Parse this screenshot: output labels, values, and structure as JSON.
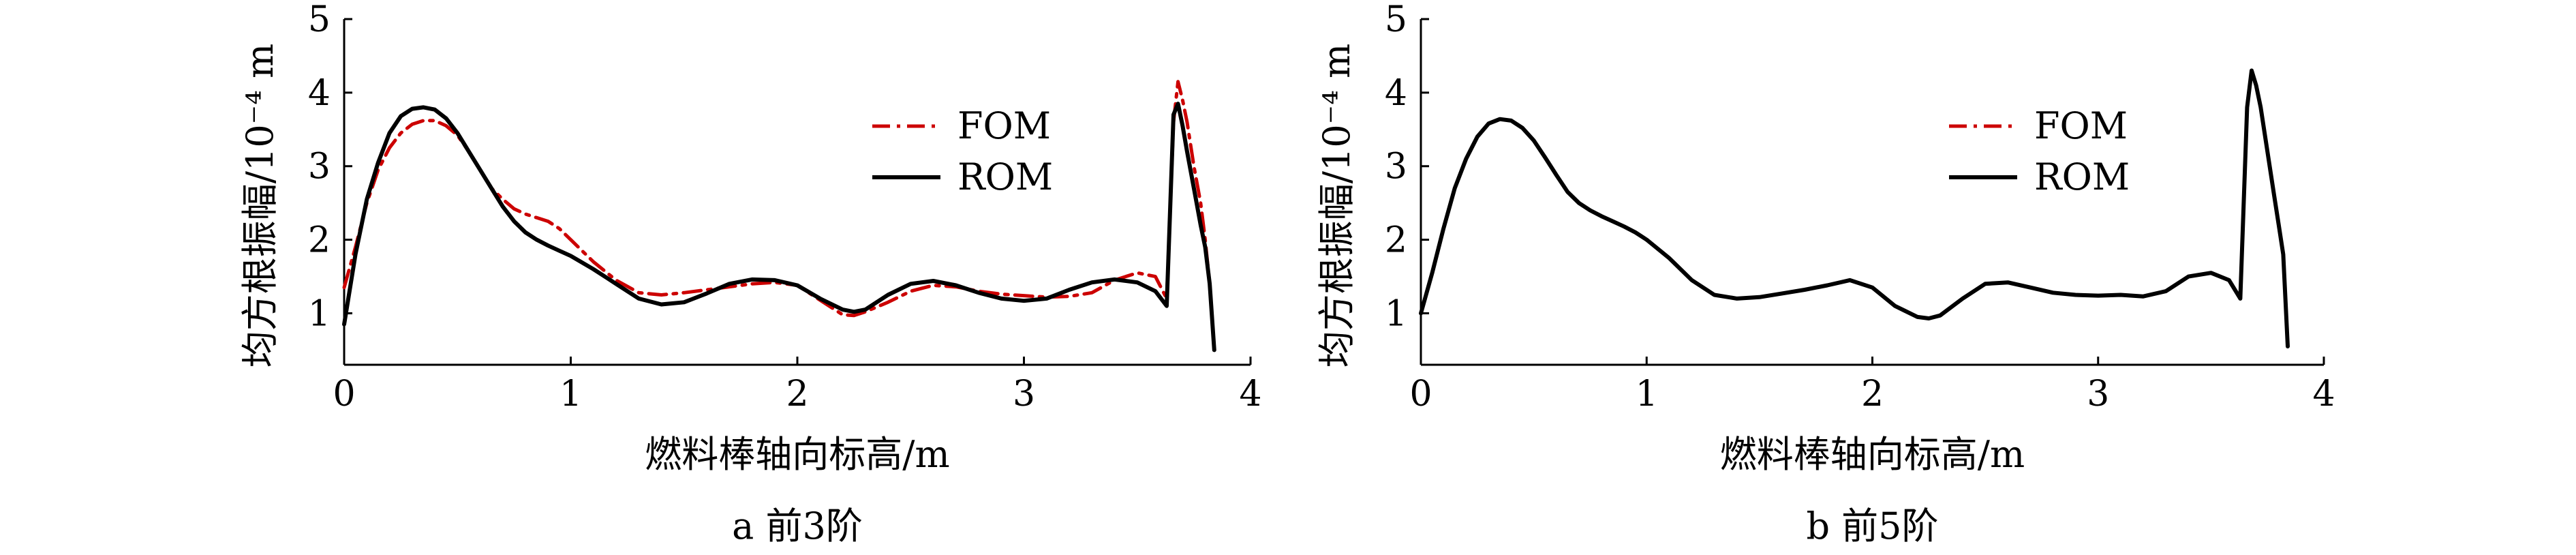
{
  "chart_data": [
    {
      "type": "line",
      "caption": "a  前3阶",
      "xlabel": "燃料棒轴向标高/m",
      "ylabel": "均方根振幅/10⁻⁴ m",
      "xlim": [
        0,
        4
      ],
      "ylim": [
        0.3,
        5
      ],
      "xticks": [
        "0",
        "1",
        "2",
        "3",
        "4"
      ],
      "yticks": [
        "1",
        "2",
        "3",
        "4",
        "5"
      ],
      "legend_position": "upper-right",
      "series": [
        {
          "name": "FOM",
          "color": "#cc0000",
          "dash": "dashdot",
          "x": [
            0,
            0.05,
            0.1,
            0.15,
            0.2,
            0.25,
            0.3,
            0.35,
            0.4,
            0.45,
            0.5,
            0.55,
            0.6,
            0.65,
            0.7,
            0.75,
            0.8,
            0.85,
            0.9,
            0.95,
            1.0,
            1.1,
            1.2,
            1.3,
            1.4,
            1.5,
            1.6,
            1.7,
            1.8,
            1.9,
            2.0,
            2.1,
            2.2,
            2.25,
            2.3,
            2.4,
            2.5,
            2.6,
            2.7,
            2.8,
            2.9,
            3.0,
            3.1,
            3.2,
            3.3,
            3.4,
            3.5,
            3.58,
            3.63,
            3.66,
            3.68,
            3.7,
            3.72,
            3.75,
            3.78,
            3.8,
            3.82,
            3.84
          ],
          "y": [
            1.35,
            1.9,
            2.5,
            2.95,
            3.25,
            3.45,
            3.57,
            3.62,
            3.62,
            3.55,
            3.42,
            3.2,
            2.95,
            2.7,
            2.55,
            2.42,
            2.35,
            2.3,
            2.25,
            2.15,
            2.0,
            1.7,
            1.45,
            1.28,
            1.25,
            1.28,
            1.32,
            1.36,
            1.4,
            1.42,
            1.38,
            1.18,
            0.98,
            0.97,
            1.02,
            1.15,
            1.3,
            1.38,
            1.36,
            1.3,
            1.26,
            1.24,
            1.22,
            1.23,
            1.28,
            1.45,
            1.55,
            1.5,
            1.2,
            3.6,
            4.15,
            3.9,
            3.6,
            3.0,
            2.5,
            2.0,
            1.4,
            0.5
          ]
        },
        {
          "name": "ROM",
          "color": "#000000",
          "dash": "solid",
          "x": [
            0,
            0.05,
            0.1,
            0.15,
            0.2,
            0.25,
            0.3,
            0.35,
            0.4,
            0.45,
            0.5,
            0.55,
            0.6,
            0.65,
            0.7,
            0.75,
            0.8,
            0.85,
            0.9,
            0.95,
            1.0,
            1.1,
            1.2,
            1.3,
            1.4,
            1.5,
            1.6,
            1.7,
            1.8,
            1.9,
            2.0,
            2.1,
            2.2,
            2.25,
            2.3,
            2.4,
            2.5,
            2.6,
            2.7,
            2.8,
            2.9,
            3.0,
            3.1,
            3.2,
            3.3,
            3.4,
            3.5,
            3.58,
            3.63,
            3.66,
            3.68,
            3.7,
            3.72,
            3.75,
            3.78,
            3.8,
            3.82,
            3.84
          ],
          "y": [
            0.85,
            1.8,
            2.55,
            3.05,
            3.45,
            3.68,
            3.78,
            3.8,
            3.77,
            3.65,
            3.45,
            3.2,
            2.95,
            2.7,
            2.45,
            2.25,
            2.1,
            2.0,
            1.92,
            1.85,
            1.78,
            1.6,
            1.4,
            1.2,
            1.12,
            1.15,
            1.27,
            1.4,
            1.46,
            1.45,
            1.38,
            1.2,
            1.05,
            1.02,
            1.05,
            1.25,
            1.4,
            1.44,
            1.38,
            1.28,
            1.2,
            1.17,
            1.2,
            1.32,
            1.42,
            1.46,
            1.42,
            1.3,
            1.1,
            3.7,
            3.85,
            3.55,
            3.2,
            2.7,
            2.2,
            1.9,
            1.4,
            0.5
          ]
        }
      ]
    },
    {
      "type": "line",
      "caption": "b  前5阶",
      "xlabel": "燃料棒轴向标高/m",
      "ylabel": "均方根振幅/10⁻⁴ m",
      "xlim": [
        0,
        4
      ],
      "ylim": [
        0.3,
        5
      ],
      "xticks": [
        "0",
        "1",
        "2",
        "3",
        "4"
      ],
      "yticks": [
        "1",
        "2",
        "3",
        "4",
        "5"
      ],
      "legend_position": "upper-right",
      "series": [
        {
          "name": "FOM",
          "color": "#cc0000",
          "dash": "dashdot",
          "x": [
            0,
            0.05,
            0.1,
            0.15,
            0.2,
            0.25,
            0.3,
            0.35,
            0.4,
            0.45,
            0.5,
            0.55,
            0.6,
            0.65,
            0.7,
            0.75,
            0.8,
            0.85,
            0.9,
            0.95,
            1.0,
            1.1,
            1.2,
            1.3,
            1.4,
            1.5,
            1.6,
            1.7,
            1.8,
            1.9,
            2.0,
            2.1,
            2.2,
            2.25,
            2.3,
            2.4,
            2.5,
            2.6,
            2.7,
            2.8,
            2.9,
            3.0,
            3.1,
            3.2,
            3.3,
            3.4,
            3.5,
            3.58,
            3.63,
            3.66,
            3.68,
            3.7,
            3.72,
            3.75,
            3.78,
            3.8,
            3.82,
            3.84
          ],
          "y": [
            1.0,
            1.55,
            2.15,
            2.7,
            3.1,
            3.4,
            3.58,
            3.64,
            3.62,
            3.52,
            3.35,
            3.12,
            2.88,
            2.65,
            2.5,
            2.4,
            2.32,
            2.25,
            2.18,
            2.1,
            2.0,
            1.75,
            1.45,
            1.25,
            1.2,
            1.22,
            1.27,
            1.32,
            1.38,
            1.45,
            1.35,
            1.1,
            0.95,
            0.93,
            0.97,
            1.2,
            1.4,
            1.42,
            1.35,
            1.28,
            1.25,
            1.24,
            1.25,
            1.23,
            1.3,
            1.5,
            1.55,
            1.45,
            1.2,
            3.8,
            4.3,
            4.1,
            3.8,
            3.2,
            2.6,
            2.2,
            1.8,
            0.55
          ]
        },
        {
          "name": "ROM",
          "color": "#000000",
          "dash": "solid",
          "x": [
            0,
            0.05,
            0.1,
            0.15,
            0.2,
            0.25,
            0.3,
            0.35,
            0.4,
            0.45,
            0.5,
            0.55,
            0.6,
            0.65,
            0.7,
            0.75,
            0.8,
            0.85,
            0.9,
            0.95,
            1.0,
            1.1,
            1.2,
            1.3,
            1.4,
            1.5,
            1.6,
            1.7,
            1.8,
            1.9,
            2.0,
            2.1,
            2.2,
            2.25,
            2.3,
            2.4,
            2.5,
            2.6,
            2.7,
            2.8,
            2.9,
            3.0,
            3.1,
            3.2,
            3.3,
            3.4,
            3.5,
            3.58,
            3.63,
            3.66,
            3.68,
            3.7,
            3.72,
            3.75,
            3.78,
            3.8,
            3.82,
            3.84
          ],
          "y": [
            1.0,
            1.55,
            2.15,
            2.7,
            3.1,
            3.4,
            3.58,
            3.64,
            3.62,
            3.52,
            3.35,
            3.12,
            2.88,
            2.65,
            2.5,
            2.4,
            2.32,
            2.25,
            2.18,
            2.1,
            2.0,
            1.75,
            1.45,
            1.25,
            1.2,
            1.22,
            1.27,
            1.32,
            1.38,
            1.45,
            1.35,
            1.1,
            0.95,
            0.93,
            0.97,
            1.2,
            1.4,
            1.42,
            1.35,
            1.28,
            1.25,
            1.24,
            1.25,
            1.23,
            1.3,
            1.5,
            1.55,
            1.45,
            1.2,
            3.8,
            4.3,
            4.1,
            3.8,
            3.2,
            2.6,
            2.2,
            1.8,
            0.55
          ]
        }
      ]
    }
  ]
}
